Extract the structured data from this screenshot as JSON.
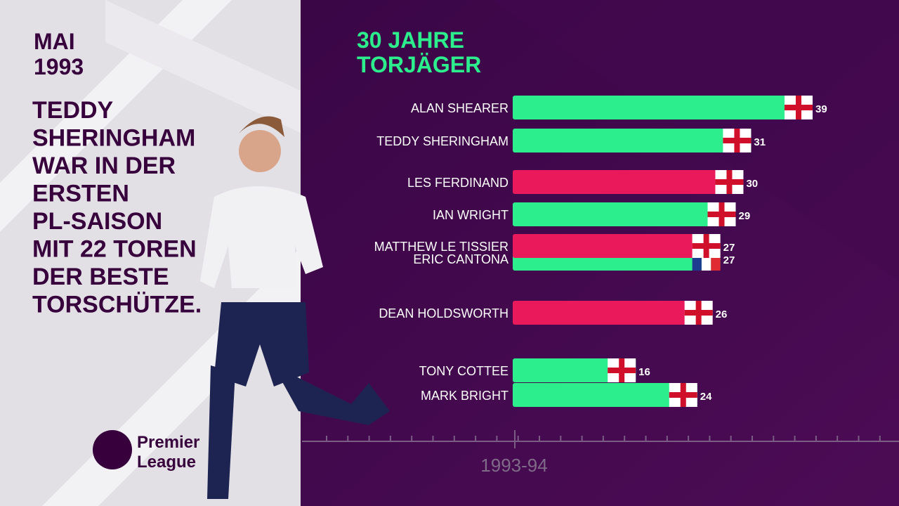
{
  "panel": {
    "date_lines": [
      "MAI",
      "1993"
    ],
    "text_lines": [
      "TEDDY",
      "SHERINGHAM",
      "WAR IN DER",
      "ERSTEN",
      "PL-SAISON",
      "MIT 22 TOREN",
      "DER BESTE",
      "TORSCHÜTZE."
    ]
  },
  "logo": {
    "lines": [
      "Premier",
      "League"
    ]
  },
  "chart_data": {
    "type": "bar",
    "orientation": "horizontal",
    "title_lines": [
      "30 JAHRE",
      "TORJÄGER"
    ],
    "categories": [
      "ALAN SHEARER",
      "TEDDY SHERINGHAM",
      "LES FERDINAND",
      "IAN WRIGHT",
      "MATTHEW LE TISSIER",
      "ERIC CANTONA",
      "DEAN HOLDSWORTH",
      "TONY COTTEE",
      "MARK BRIGHT"
    ],
    "values": [
      39,
      31,
      30,
      29,
      27,
      27,
      26,
      16,
      24
    ],
    "colors": [
      "#2cee8d",
      "#2cee8d",
      "#e9195c",
      "#2cee8d",
      "#e9195c",
      "#2cee8d",
      "#e9195c",
      "#2cee8d",
      "#2cee8d"
    ],
    "flags": [
      "england",
      "england",
      "england",
      "england",
      "england",
      "france",
      "england",
      "england",
      "england"
    ],
    "period": "1993-94"
  }
}
